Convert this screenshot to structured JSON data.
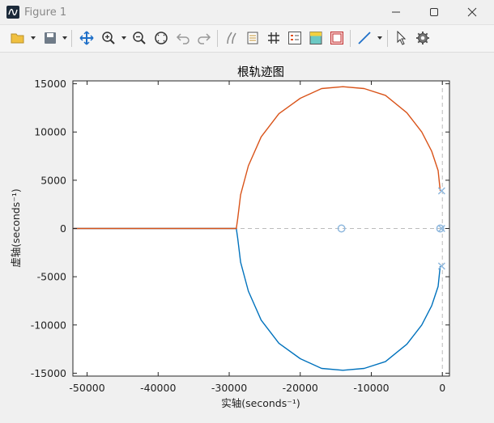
{
  "window": {
    "title": "Figure 1"
  },
  "toolbar": {
    "tools": [
      "open-file",
      "save",
      "pan",
      "zoom-in",
      "zoom-out",
      "zoom-reset",
      "undo",
      "redo",
      "brush",
      "datatip",
      "grid",
      "legend",
      "colorbar",
      "figure-border",
      "line",
      "pointer",
      "settings"
    ]
  },
  "colors": {
    "series1": "#0072bd",
    "series2": "#d95319",
    "marker": "#8fb8de",
    "asymptote": "#bbbbbb"
  },
  "chart_data": {
    "type": "line",
    "title": "根轨迹图",
    "xlabel": "实轴(seconds⁻¹)",
    "ylabel": "虚轴(seconds⁻¹)",
    "xlim": [
      -52000,
      1000
    ],
    "ylim": [
      -15300,
      15300
    ],
    "xticks": [
      -50000,
      -40000,
      -30000,
      -20000,
      -10000,
      0
    ],
    "yticks": [
      -15000,
      -10000,
      -5000,
      0,
      5000,
      10000,
      15000
    ],
    "xtick_labels": [
      "-50000",
      "-40000",
      "-30000",
      "-20000",
      "-10000",
      "0"
    ],
    "ytick_labels": [
      "-15000",
      "-10000",
      "-5000",
      "0",
      "5000",
      "10000",
      "15000"
    ],
    "grid": false,
    "series": [
      {
        "values": [
          [
            -300,
            -3900
          ],
          [
            -600,
            -6000
          ],
          [
            -1500,
            -8000
          ],
          [
            -2900,
            -10000
          ],
          [
            -5000,
            -12000
          ],
          [
            -8000,
            -13800
          ],
          [
            -11000,
            -14500
          ],
          [
            -14000,
            -14700
          ],
          [
            -17000,
            -14500
          ],
          [
            -20000,
            -13500
          ],
          [
            -23000,
            -11900
          ],
          [
            -25500,
            -9500
          ],
          [
            -27300,
            -6500
          ],
          [
            -28400,
            -3500
          ],
          [
            -28800,
            -1000
          ],
          [
            -29000,
            0
          ],
          [
            -52000,
            0
          ]
        ]
      },
      {
        "values": [
          [
            -300,
            3900
          ],
          [
            -600,
            6000
          ],
          [
            -1500,
            8000
          ],
          [
            -2900,
            10000
          ],
          [
            -5000,
            12000
          ],
          [
            -8000,
            13800
          ],
          [
            -11000,
            14500
          ],
          [
            -14000,
            14700
          ],
          [
            -17000,
            14500
          ],
          [
            -20000,
            13500
          ],
          [
            -23000,
            11900
          ],
          [
            -25500,
            9500
          ],
          [
            -27300,
            6500
          ],
          [
            -28400,
            3500
          ],
          [
            -28800,
            1000
          ],
          [
            -29000,
            0
          ],
          [
            -52000,
            0
          ]
        ]
      }
    ],
    "zeros": [
      [
        -14200,
        0
      ],
      [
        -300,
        0
      ]
    ],
    "poles": [
      [
        -100,
        3900
      ],
      [
        -100,
        -3900
      ],
      [
        -100,
        0
      ]
    ],
    "asymptotes": {
      "vertical_x": 0,
      "horizontal_y": 0
    }
  }
}
